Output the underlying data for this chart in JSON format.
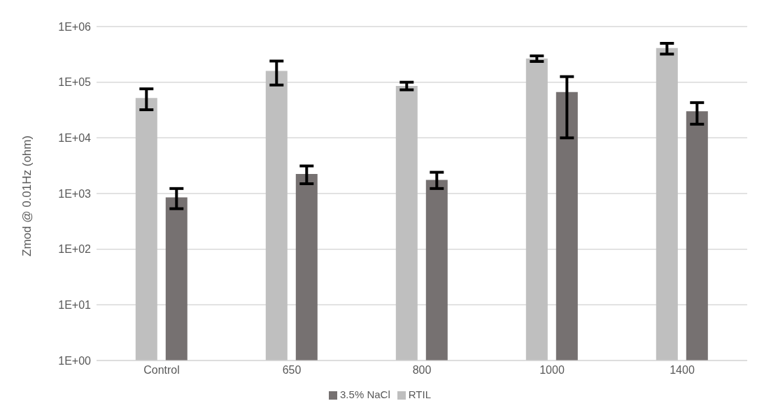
{
  "chart_data": {
    "type": "bar",
    "ylabel": "Zmod @ 0.01Hz (ohm)",
    "categories": [
      "Control",
      "650",
      "800",
      "1000",
      "1400"
    ],
    "series": [
      {
        "name": "RTIL",
        "color": "#bfbfbf",
        "values": [
          52000,
          160000,
          85500,
          267000,
          410000
        ],
        "errors": [
          [
            32000,
            76000
          ],
          [
            89000,
            240000
          ],
          [
            73000,
            100000
          ],
          [
            236000,
            297000
          ],
          [
            320000,
            500000
          ]
        ]
      },
      {
        "name": "3.5% NaCl",
        "color": "#767171",
        "values": [
          855,
          2240,
          1760,
          66500,
          30000
        ],
        "errors": [
          [
            534,
            1230
          ],
          [
            1500,
            3130
          ],
          [
            1230,
            2410
          ],
          [
            10000,
            126000
          ],
          [
            17600,
            43000
          ]
        ]
      }
    ],
    "log": "y",
    "ylim": [
      1,
      1000000
    ],
    "yticks": [
      {
        "value": 1,
        "label": "1E+00"
      },
      {
        "value": 10,
        "label": "1E+01"
      },
      {
        "value": 100,
        "label": "1E+02"
      },
      {
        "value": 1000,
        "label": "1E+03"
      },
      {
        "value": 10000,
        "label": "1E+04"
      },
      {
        "value": 100000,
        "label": "1E+05"
      },
      {
        "value": 1000000,
        "label": "1E+06"
      }
    ],
    "grid": "y",
    "legend": "bottom"
  }
}
